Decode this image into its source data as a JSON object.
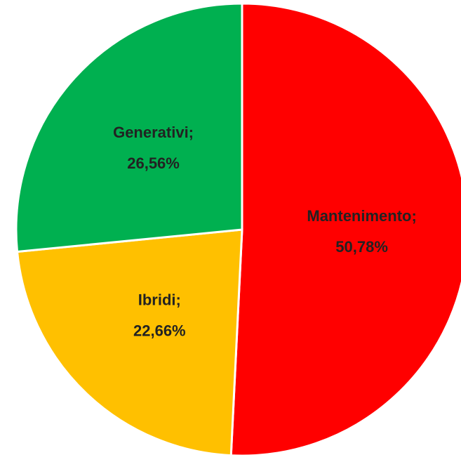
{
  "chart_data": {
    "type": "pie",
    "categories": [
      "Mantenimento;",
      "Ibridi;",
      "Generativi;"
    ],
    "values": [
      50.78,
      22.66,
      26.56
    ],
    "value_labels": [
      "50,78%",
      "22,66%",
      "26,56%"
    ],
    "colors": [
      "#ff0000",
      "#ffc000",
      "#00b050"
    ]
  }
}
